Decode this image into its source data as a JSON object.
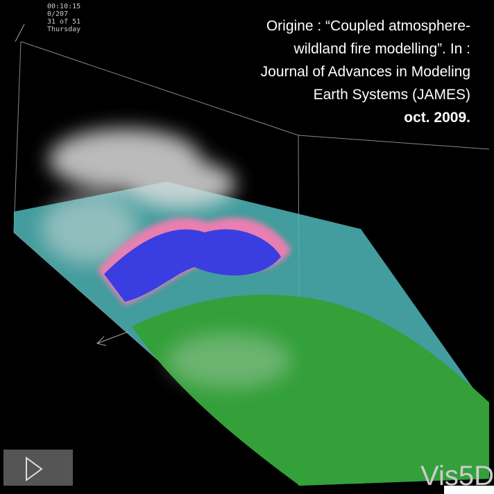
{
  "video": {
    "overlay": [
      "00:10:15",
      "0/207",
      "31 of 51",
      "Thursday"
    ],
    "caption": {
      "lines": [
        "Origine : “Coupled atmosphere-",
        "wildland fire modelling”. In :",
        "Journal of Advances in Modeling",
        "Earth Systems (JAMES)"
      ],
      "date": "oct. 2009."
    },
    "watermark": "Vis5D"
  }
}
